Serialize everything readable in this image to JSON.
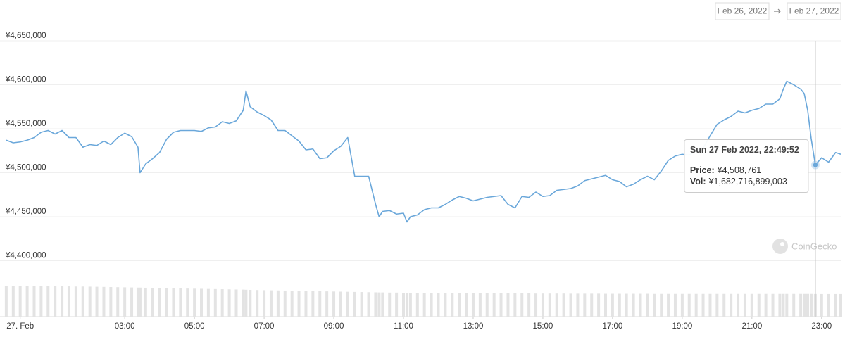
{
  "controls": {
    "from": "Feb 26, 2022",
    "to": "Feb 27, 2022"
  },
  "watermark": "CoinGecko",
  "chart_data": {
    "type": "line",
    "x": [
      -0.4,
      -0.2,
      0,
      0.2,
      0.4,
      0.6,
      0.8,
      1,
      1.2,
      1.4,
      1.6,
      1.8,
      2,
      2.2,
      2.4,
      2.6,
      2.8,
      3,
      3.2,
      3.38,
      3.44,
      3.6,
      3.8,
      4,
      4.2,
      4.4,
      4.6,
      4.8,
      5,
      5.2,
      5.4,
      5.6,
      5.8,
      6,
      6.2,
      6.4,
      6.48,
      6.6,
      6.8,
      7,
      7.2,
      7.4,
      7.6,
      7.8,
      8,
      8.2,
      8.4,
      8.6,
      8.8,
      9,
      9.2,
      9.4,
      9.6,
      9.8,
      10,
      10.2,
      10.3,
      10.4,
      10.6,
      10.8,
      11,
      11.1,
      11.2,
      11.4,
      11.6,
      11.8,
      12,
      12.2,
      12.4,
      12.6,
      12.8,
      13,
      13.2,
      13.4,
      13.6,
      13.8,
      14,
      14.2,
      14.4,
      14.6,
      14.8,
      15,
      15.2,
      15.4,
      15.6,
      15.8,
      16,
      16.2,
      16.4,
      16.6,
      16.8,
      17,
      17.2,
      17.4,
      17.6,
      17.8,
      18,
      18.2,
      18.4,
      18.6,
      18.8,
      19,
      19.2,
      19.4,
      19.6,
      19.8,
      20,
      20.2,
      20.4,
      20.6,
      20.8,
      21,
      21.2,
      21.4,
      21.6,
      21.8,
      21.9,
      22,
      22.2,
      22.4,
      22.5,
      22.6,
      22.7,
      22.82,
      23,
      23.2,
      23.4,
      23.55
    ],
    "series": [
      {
        "name": "Price:",
        "color": "#6aa7da",
        "values": [
          4537000,
          4534000,
          4535000,
          4537000,
          4540000,
          4546000,
          4548000,
          4544000,
          4548000,
          4540000,
          4540000,
          4529000,
          4532000,
          4531000,
          4536000,
          4532000,
          4540000,
          4545000,
          4541000,
          4529000,
          4500000,
          4510000,
          4516000,
          4523000,
          4538000,
          4546000,
          4548000,
          4548000,
          4548000,
          4547000,
          4551000,
          4552000,
          4558000,
          4556000,
          4559000,
          4571000,
          4593000,
          4575000,
          4569000,
          4565000,
          4560000,
          4548000,
          4548000,
          4542000,
          4536000,
          4526000,
          4527000,
          4516000,
          4517000,
          4525000,
          4530000,
          4540000,
          4496000,
          4496000,
          4496000,
          4464000,
          4450000,
          4456000,
          4457000,
          4453000,
          4454000,
          4444000,
          4450000,
          4452000,
          4458000,
          4460000,
          4460000,
          4464000,
          4469000,
          4473000,
          4471000,
          4468000,
          4470000,
          4472000,
          4473000,
          4474000,
          4464000,
          4460000,
          4473000,
          4472000,
          4478000,
          4473000,
          4474000,
          4480000,
          4481000,
          4482000,
          4485000,
          4491000,
          4493000,
          4495000,
          4497000,
          4492000,
          4490000,
          4484000,
          4487000,
          4492000,
          4496000,
          4492000,
          4502000,
          4514000,
          4519000,
          4521000,
          4520000,
          4525000,
          4528000,
          4542000,
          4555000,
          4560000,
          4564000,
          4570000,
          4568000,
          4571000,
          4573000,
          4578000,
          4578000,
          4584000,
          4595000,
          4604000,
          4600000,
          4595000,
          4590000,
          4571000,
          4539000,
          4508761,
          4517000,
          4512000,
          4523000,
          4521000
        ],
        "value_labels": [
          null,
          null,
          null,
          null,
          null,
          null,
          null,
          null,
          null,
          null,
          null,
          null,
          null,
          null,
          null,
          null,
          null,
          null,
          null,
          null,
          null,
          null,
          null,
          null,
          null,
          null,
          null,
          null,
          null,
          null,
          null,
          null,
          null,
          null,
          null,
          null,
          null,
          null,
          null,
          null,
          null,
          null,
          null,
          null,
          null,
          null,
          null,
          null,
          null,
          null,
          null,
          null,
          null,
          null,
          null,
          null,
          null,
          null,
          null,
          null,
          null,
          null,
          null,
          null,
          null,
          null,
          null,
          null,
          null,
          null,
          null,
          null,
          null,
          null,
          null,
          null,
          null,
          null,
          null,
          null,
          null,
          null,
          null,
          null,
          null,
          null,
          null,
          null,
          null,
          null,
          null,
          null,
          null,
          null,
          null,
          null,
          null,
          null,
          null,
          null,
          null,
          null,
          null,
          null,
          null,
          null,
          null,
          null,
          null,
          null,
          null,
          null,
          null,
          null,
          null,
          null,
          null,
          null,
          null,
          null,
          null,
          null,
          null,
          "¥4,508,761",
          null,
          null,
          null,
          null
        ]
      },
      {
        "name": "Vol:",
        "color": "#e3e3e3",
        "axis": "y2",
        "values": [
          2300000000000.0,
          2300000000000.0,
          2290000000000.0,
          2290000000000.0,
          2280000000000.0,
          2280000000000.0,
          2270000000000.0,
          2260000000000.0,
          2260000000000.0,
          2250000000000.0,
          2240000000000.0,
          2240000000000.0,
          2230000000000.0,
          2220000000000.0,
          2210000000000.0,
          2200000000000.0,
          2190000000000.0,
          2180000000000.0,
          2170000000000.0,
          2160000000000.0,
          2160000000000.0,
          2150000000000.0,
          2140000000000.0,
          2130000000000.0,
          2120000000000.0,
          2110000000000.0,
          2100000000000.0,
          2090000000000.0,
          2080000000000.0,
          2070000000000.0,
          2060000000000.0,
          2050000000000.0,
          2040000000000.0,
          2030000000000.0,
          2020000000000.0,
          2010000000000.0,
          2000000000000.0,
          1990000000000.0,
          1980000000000.0,
          1970000000000.0,
          1960000000000.0,
          1950000000000.0,
          1940000000000.0,
          1930000000000.0,
          1920000000000.0,
          1910000000000.0,
          1900000000000.0,
          1890000000000.0,
          1880000000000.0,
          1870000000000.0,
          1860000000000.0,
          1850000000000.0,
          1840000000000.0,
          1830000000000.0,
          1820000000000.0,
          1810000000000.0,
          1800000000000.0,
          1800000000000.0,
          1790000000000.0,
          1790000000000.0,
          1780000000000.0,
          1780000000000.0,
          1780000000000.0,
          1770000000000.0,
          1770000000000.0,
          1770000000000.0,
          1760000000000.0,
          1760000000000.0,
          1760000000000.0,
          1750000000000.0,
          1750000000000.0,
          1750000000000.0,
          1740000000000.0,
          1740000000000.0,
          1740000000000.0,
          1740000000000.0,
          1730000000000.0,
          1730000000000.0,
          1730000000000.0,
          1730000000000.0,
          1720000000000.0,
          1720000000000.0,
          1720000000000.0,
          1720000000000.0,
          1720000000000.0,
          1710000000000.0,
          1710000000000.0,
          1710000000000.0,
          1710000000000.0,
          1710000000000.0,
          1700000000000.0,
          1700000000000.0,
          1700000000000.0,
          1700000000000.0,
          1700000000000.0,
          1700000000000.0,
          1700000000000.0,
          1690000000000.0,
          1690000000000.0,
          1690000000000.0,
          1690000000000.0,
          1690000000000.0,
          1690000000000.0,
          1690000000000.0,
          1690000000000.0,
          1690000000000.0,
          1690000000000.0,
          1690000000000.0,
          1690000000000.0,
          1690000000000.0,
          1690000000000.0,
          1690000000000.0,
          1690000000000.0,
          1690000000000.0,
          1690000000000.0,
          1690000000000.0,
          1690000000000.0,
          1690000000000.0,
          1690000000000.0,
          1690000000000.0,
          1690000000000.0,
          1690000000000.0,
          1690000000000.0,
          1682716899003,
          1680000000000.0,
          1680000000000.0,
          1680000000000.0,
          1680000000000.0
        ],
        "value_labels": [
          null,
          null,
          null,
          null,
          null,
          null,
          null,
          null,
          null,
          null,
          null,
          null,
          null,
          null,
          null,
          null,
          null,
          null,
          null,
          null,
          null,
          null,
          null,
          null,
          null,
          null,
          null,
          null,
          null,
          null,
          null,
          null,
          null,
          null,
          null,
          null,
          null,
          null,
          null,
          null,
          null,
          null,
          null,
          null,
          null,
          null,
          null,
          null,
          null,
          null,
          null,
          null,
          null,
          null,
          null,
          null,
          null,
          null,
          null,
          null,
          null,
          null,
          null,
          null,
          null,
          null,
          null,
          null,
          null,
          null,
          null,
          null,
          null,
          null,
          null,
          null,
          null,
          null,
          null,
          null,
          null,
          null,
          null,
          null,
          null,
          null,
          null,
          null,
          null,
          null,
          null,
          null,
          null,
          null,
          null,
          null,
          null,
          null,
          null,
          null,
          null,
          null,
          null,
          null,
          null,
          null,
          null,
          null,
          null,
          null,
          null,
          null,
          null,
          null,
          null,
          null,
          null,
          null,
          null,
          null,
          null,
          null,
          null,
          "¥1,682,716,899,003",
          null,
          null,
          null,
          null
        ]
      }
    ],
    "tooltip_title": "Sun 27 Feb 2022, 22:49:52",
    "xlim": [
      -0.58,
      23.57
    ],
    "xticks": [
      {
        "value": 0,
        "label": "27. Feb"
      },
      {
        "value": 3,
        "label": "03:00"
      },
      {
        "value": 5,
        "label": "05:00"
      },
      {
        "value": 7,
        "label": "07:00"
      },
      {
        "value": 9,
        "label": "09:00"
      },
      {
        "value": 11,
        "label": "11:00"
      },
      {
        "value": 13,
        "label": "13:00"
      },
      {
        "value": 15,
        "label": "15:00"
      },
      {
        "value": 17,
        "label": "17:00"
      },
      {
        "value": 19,
        "label": "19:00"
      },
      {
        "value": 21,
        "label": "21:00"
      },
      {
        "value": 23,
        "label": "23:00"
      }
    ],
    "ylim": [
      4400000,
      4650000
    ],
    "yticks": [
      {
        "value": 4400000,
        "label": "¥4,400,000"
      },
      {
        "value": 4450000,
        "label": "¥4,450,000"
      },
      {
        "value": 4500000,
        "label": "¥4,500,000"
      },
      {
        "value": 4550000,
        "label": "¥4,550,000"
      },
      {
        "value": 4600000,
        "label": "¥4,600,000"
      },
      {
        "value": 4650000,
        "label": "¥4,650,000"
      }
    ],
    "y2lim": [
      0,
      4400000000000.0
    ],
    "grid": true
  }
}
